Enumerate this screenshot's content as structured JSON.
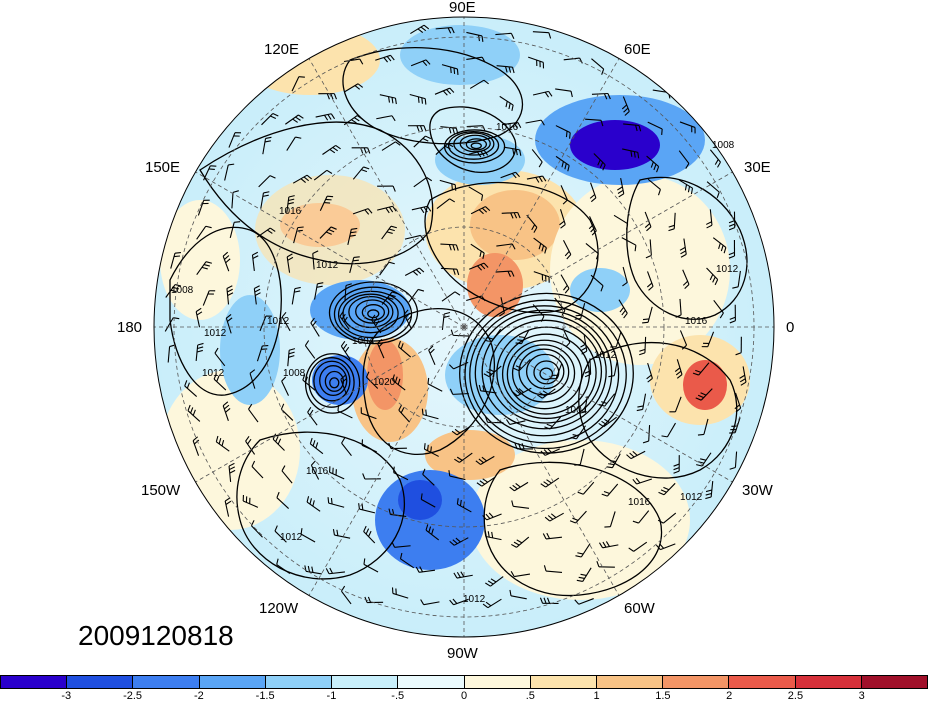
{
  "date_stamp": "2009120818",
  "longitude_labels": {
    "lon_90e": "90E",
    "lon_120e": "120E",
    "lon_60e": "60E",
    "lon_150e": "150E",
    "lon_30e": "30E",
    "lon_180": "180",
    "lon_0": "0",
    "lon_150w": "150W",
    "lon_30w": "30W",
    "lon_120w": "120W",
    "lon_60w": "60W",
    "lon_90w": "90W"
  },
  "isobar_labels": [
    "1016",
    "1008",
    "1012",
    "1016",
    "1012",
    "1008",
    "1012",
    "1012",
    "1004",
    "1008",
    "1020",
    "1012",
    "1004",
    "1016",
    "1016",
    "1012",
    "1012",
    "1016",
    "1012",
    "1012"
  ],
  "colorbar": {
    "colors": [
      "#2a00cc",
      "#1f4fe0",
      "#3d7ef0",
      "#5aa5f5",
      "#8fd0f8",
      "#c8effb",
      "#eafafd",
      "#fdf7dc",
      "#fce3ad",
      "#f8c386",
      "#f39566",
      "#ea5a4a",
      "#d6303a",
      "#a0102a"
    ],
    "tick_labels": [
      "-3",
      "-2.5",
      "-2",
      "-1.5",
      "-1",
      "-.5",
      "0",
      ".5",
      "1",
      "1.5",
      "2",
      "2.5",
      "3"
    ]
  }
}
